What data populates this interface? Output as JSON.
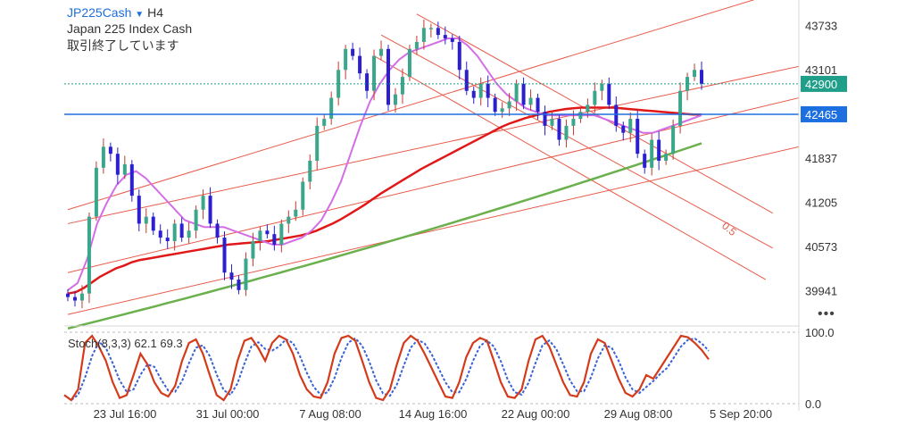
{
  "header": {
    "symbol": "JP225Cash",
    "dropdown_icon": "chevron-down-icon",
    "timeframe": "H4",
    "description": "Japan 225 Index Cash",
    "status": "取引終了しています"
  },
  "more_icon": "more-dots-icon",
  "colors": {
    "bull": "#3aa68b",
    "bear": "#2b1fd0",
    "wick_bull": "#c0392b",
    "channel": "#e85a4a",
    "ma_red": "#e01818",
    "ma_green": "#6ab04c",
    "ma_violet": "#d36ee6",
    "hline_blue": "#1d6fe0",
    "price_tag": "#1f9e89",
    "stoch_main": "#d43b1a",
    "stoch_signal": "#3a62d6"
  },
  "chart_data": [
    {
      "type": "candlestick",
      "title": "JP225Cash H4",
      "y_ticks": [
        "43733",
        "43101",
        "41837",
        "41205",
        "40573",
        "39941"
      ],
      "ylim": [
        39500,
        44100
      ],
      "x_ticks": [
        "23 Jul 16:00",
        "31 Jul 00:00",
        "7 Aug 08:00",
        "14 Aug 16:00",
        "22 Aug 00:00",
        "29 Aug 08:00",
        "5 Sep 20:00"
      ],
      "current_price": {
        "label": "42900",
        "value": 42900
      },
      "horizontal_line": {
        "label": "42465",
        "value": 42465
      },
      "annotation": "0.5",
      "close": [
        39850,
        39800,
        39900,
        41000,
        41700,
        42000,
        41900,
        41600,
        41750,
        41300,
        40900,
        41000,
        40800,
        40700,
        40650,
        40900,
        40700,
        40800,
        41100,
        41300,
        40900,
        40700,
        40200,
        40100,
        39950,
        40400,
        40650,
        40800,
        40750,
        40600,
        40900,
        41000,
        41100,
        41500,
        41800,
        42300,
        42400,
        42700,
        43100,
        43400,
        43300,
        43050,
        42800,
        43300,
        43400,
        42600,
        42750,
        43000,
        43400,
        43500,
        43700,
        43700,
        43600,
        43550,
        43500,
        43100,
        42800,
        42700,
        42900,
        42700,
        42500,
        42550,
        42650,
        42900,
        42600,
        42700,
        42500,
        42300,
        42400,
        42100,
        42300,
        42400,
        42500,
        42600,
        42800,
        42900,
        42600,
        42300,
        42200,
        42400,
        41900,
        41700,
        42100,
        41800,
        41900,
        42300,
        42800,
        43000,
        43100,
        42900
      ],
      "ma_red": [
        39900,
        39920,
        39980,
        40060,
        40140,
        40200,
        40260,
        40300,
        40350,
        40380,
        40400,
        40420,
        40440,
        40460,
        40480,
        40500,
        40520,
        40540,
        40560,
        40580,
        40600,
        40610,
        40620,
        40630,
        40640,
        40650,
        40670,
        40690,
        40710,
        40730,
        40760,
        40800,
        40850,
        40900,
        40960,
        41030,
        41100,
        41170,
        41250,
        41330,
        41400,
        41470,
        41540,
        41610,
        41680,
        41740,
        41800,
        41860,
        41920,
        41980,
        42040,
        42100,
        42160,
        42220,
        42280,
        42330,
        42370,
        42410,
        42440,
        42470,
        42500,
        42520,
        42540,
        42550,
        42560,
        42560,
        42560,
        42560,
        42560,
        42550,
        42540,
        42530,
        42520,
        42510,
        42500,
        42490,
        42480,
        42470,
        42460,
        42460
      ],
      "ma_green_range": [
        39400,
        42050
      ],
      "ma_violet": [
        39950,
        40050,
        40400,
        40900,
        41200,
        41450,
        41600,
        41650,
        41550,
        41400,
        41250,
        41100,
        40950,
        40900,
        40850,
        40850,
        40850,
        40800,
        40750,
        40700,
        40650,
        40600,
        40600,
        40650,
        40700,
        40800,
        40950,
        41200,
        41500,
        41900,
        42300,
        42650,
        42900,
        43100,
        43250,
        43350,
        43400,
        43450,
        43500,
        43550,
        43550,
        43450,
        43300,
        43100,
        42900,
        42750,
        42650,
        42550,
        42500,
        42450,
        42450,
        42450,
        42450,
        42450,
        42450,
        42400,
        42350,
        42300,
        42250,
        42200,
        42200,
        42250,
        42300,
        42350,
        42400,
        42450
      ]
    },
    {
      "type": "line",
      "title": "Stoch(8,3,3)",
      "legend": "Stoch(8,3,3) 62.1 69.3",
      "values_shown": [
        62.1,
        69.3
      ],
      "y_ticks": [
        "100.0",
        "0.0"
      ],
      "ylim": [
        0,
        100
      ],
      "k": [
        12,
        5,
        20,
        85,
        95,
        80,
        60,
        30,
        8,
        12,
        40,
        70,
        55,
        30,
        15,
        10,
        25,
        60,
        85,
        90,
        70,
        40,
        12,
        5,
        20,
        60,
        88,
        92,
        78,
        60,
        85,
        95,
        90,
        70,
        40,
        20,
        10,
        8,
        30,
        70,
        92,
        95,
        88,
        60,
        30,
        8,
        5,
        20,
        55,
        85,
        95,
        88,
        70,
        50,
        30,
        10,
        8,
        30,
        65,
        85,
        92,
        88,
        60,
        30,
        10,
        8,
        20,
        60,
        90,
        95,
        80,
        55,
        30,
        12,
        10,
        30,
        70,
        90,
        85,
        60,
        35,
        15,
        10,
        20,
        40,
        35,
        50,
        65,
        80,
        95,
        93,
        85,
        75,
        62
      ]
    }
  ]
}
